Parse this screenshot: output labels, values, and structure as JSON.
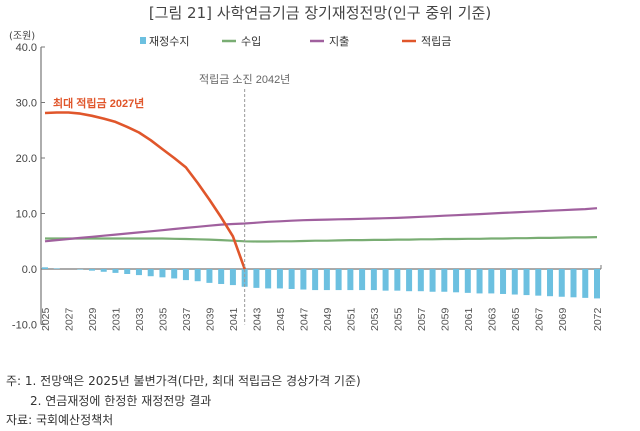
{
  "title": "[그림 21] 사학연금기금 장기재정전망(인구 중위 기준)",
  "unit_label": "(조원)",
  "chart_data": {
    "type": "bar+line",
    "title": "[그림 21] 사학연금기금 장기재정전망(인구 중위 기준)",
    "ylabel": "(조원)",
    "ylim": [
      -10,
      40
    ],
    "yticks": [
      "40.0",
      "30.0",
      "20.0",
      "10.0",
      "0.0",
      "-10.0"
    ],
    "ytick_values": [
      40,
      30,
      20,
      10,
      0,
      -10
    ],
    "x": [
      2025,
      2026,
      2027,
      2028,
      2029,
      2030,
      2031,
      2032,
      2033,
      2034,
      2035,
      2036,
      2037,
      2038,
      2039,
      2040,
      2041,
      2042,
      2043,
      2044,
      2045,
      2046,
      2047,
      2048,
      2049,
      2050,
      2051,
      2052,
      2053,
      2054,
      2055,
      2056,
      2057,
      2058,
      2059,
      2060,
      2061,
      2062,
      2063,
      2064,
      2065,
      2066,
      2067,
      2068,
      2069,
      2070,
      2071,
      2072
    ],
    "xticks": [
      "2025",
      "2027",
      "2029",
      "2031",
      "2033",
      "2035",
      "2037",
      "2039",
      "2041",
      "2043",
      "2045",
      "2047",
      "2049",
      "2051",
      "2053",
      "2055",
      "2057",
      "2059",
      "2061",
      "2063",
      "2065",
      "2067",
      "2069",
      "2072"
    ],
    "legend_position": "top",
    "grid": false,
    "series": [
      {
        "name": "재정수지",
        "kind": "bar",
        "color": "#6cc0e0",
        "values": [
          0.3,
          0.1,
          0.0,
          -0.1,
          -0.3,
          -0.5,
          -0.7,
          -0.9,
          -1.1,
          -1.3,
          -1.5,
          -1.7,
          -2.0,
          -2.2,
          -2.5,
          -2.7,
          -2.9,
          -3.2,
          -3.4,
          -3.5,
          -3.5,
          -3.6,
          -3.7,
          -3.8,
          -3.8,
          -3.8,
          -3.8,
          -3.8,
          -3.8,
          -3.9,
          -3.9,
          -4.0,
          -4.0,
          -4.1,
          -4.1,
          -4.2,
          -4.3,
          -4.4,
          -4.4,
          -4.5,
          -4.6,
          -4.7,
          -4.8,
          -4.9,
          -5.0,
          -5.1,
          -5.2,
          -5.3
        ]
      },
      {
        "name": "수입",
        "kind": "line",
        "color": "#79ad73",
        "values": [
          5.5,
          5.5,
          5.5,
          5.5,
          5.5,
          5.5,
          5.5,
          5.5,
          5.5,
          5.5,
          5.5,
          5.45,
          5.4,
          5.35,
          5.3,
          5.2,
          5.1,
          5.0,
          4.95,
          4.95,
          5.0,
          5.0,
          5.05,
          5.1,
          5.1,
          5.15,
          5.2,
          5.2,
          5.25,
          5.25,
          5.3,
          5.3,
          5.35,
          5.35,
          5.4,
          5.4,
          5.45,
          5.45,
          5.5,
          5.5,
          5.55,
          5.55,
          5.6,
          5.6,
          5.65,
          5.7,
          5.7,
          5.75
        ]
      },
      {
        "name": "지출",
        "kind": "line",
        "color": "#a0609e",
        "values": [
          5.0,
          5.2,
          5.4,
          5.6,
          5.8,
          6.0,
          6.2,
          6.4,
          6.6,
          6.8,
          7.0,
          7.2,
          7.4,
          7.6,
          7.8,
          8.0,
          8.1,
          8.2,
          8.35,
          8.5,
          8.6,
          8.7,
          8.8,
          8.85,
          8.9,
          8.95,
          9.0,
          9.05,
          9.1,
          9.15,
          9.2,
          9.3,
          9.4,
          9.5,
          9.6,
          9.7,
          9.8,
          9.9,
          10.0,
          10.1,
          10.2,
          10.3,
          10.4,
          10.5,
          10.6,
          10.7,
          10.8,
          10.95
        ]
      },
      {
        "name": "적립금",
        "kind": "line",
        "color": "#e0562b",
        "values": [
          28.1,
          28.2,
          28.2,
          28.0,
          27.6,
          27.1,
          26.5,
          25.6,
          24.6,
          23.2,
          21.6,
          20.0,
          18.3,
          15.5,
          12.5,
          9.3,
          5.9,
          0.0,
          null,
          null,
          null,
          null,
          null,
          null,
          null,
          null,
          null,
          null,
          null,
          null,
          null,
          null,
          null,
          null,
          null,
          null,
          null,
          null,
          null,
          null,
          null,
          null,
          null,
          null,
          null,
          null,
          null,
          null
        ]
      }
    ],
    "annotations": [
      {
        "text": "최대 적립금 2027년",
        "x": 2027,
        "color": "#e0562b"
      },
      {
        "text": "적립금 소진 2042년",
        "x": 2042,
        "style": "dashed-vertical-line"
      }
    ]
  },
  "notes": [
    "주: 1. 전망액은 2025년 불변가격(다만, 최대 적립금은 경상가격 기준)",
    "2. 연금재정에 한정한 재정전망 결과",
    "자료: 국회예산정책처"
  ]
}
